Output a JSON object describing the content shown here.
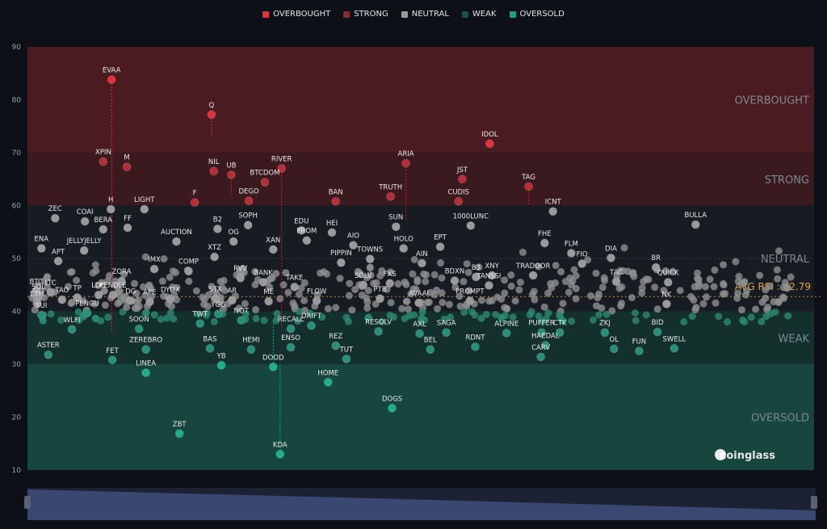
{
  "legend": [
    {
      "label": "OVERBOUGHT",
      "color": "#e0323e"
    },
    {
      "label": "STRONG",
      "color": "#8b2b30"
    },
    {
      "label": "NEUTRAL",
      "color": "#9a9a9a"
    },
    {
      "label": "WEAK",
      "color": "#1f4f47"
    },
    {
      "label": "OVERSOLD",
      "color": "#1f9e85"
    }
  ],
  "brand": "coinglass",
  "avg_label": "AVG RSI : 42.79",
  "chart_data": {
    "type": "scatter",
    "ylim": [
      10,
      90
    ],
    "yticks": [
      10,
      20,
      30,
      40,
      50,
      60,
      70,
      80,
      90
    ],
    "avg_rsi": 42.79,
    "zones": [
      {
        "label": "OVERBOUGHT",
        "from": 80,
        "to": 90,
        "color": "#4a1c22"
      },
      {
        "label": "STRONG",
        "from": 70,
        "to": 80,
        "color": "#3a1a1f"
      },
      {
        "label": "NEUTRAL",
        "from": 40,
        "to": 70,
        "color": "#1a1d23"
      },
      {
        "label": "WEAK",
        "from": 30,
        "to": 40,
        "color": "#142e2b"
      },
      {
        "label": "OVERSOLD",
        "from": 10,
        "to": 30,
        "color": "#14453d"
      }
    ],
    "bands": [
      {
        "from": 70,
        "to": 90,
        "color": "#4a1c22"
      },
      {
        "from": 60,
        "to": 70,
        "color": "#3a1a1f"
      },
      {
        "from": 40,
        "to": 60,
        "color": "#171b22"
      },
      {
        "from": 30,
        "to": 40,
        "color": "#14302c"
      },
      {
        "from": 10,
        "to": 30,
        "color": "#16463e"
      }
    ],
    "zone_labels": [
      {
        "label": "OVERBOUGHT",
        "y": 80
      },
      {
        "label": "STRONG",
        "y": 65
      },
      {
        "label": "NEUTRAL",
        "y": 50
      },
      {
        "label": "WEAK",
        "y": 35
      },
      {
        "label": "OVERSOLD",
        "y": 20
      }
    ],
    "points": [
      {
        "name": "EVAA",
        "x": 0.104,
        "y": 83.8,
        "prev": 36,
        "c": "#e0323e"
      },
      {
        "name": "Q",
        "x": 0.235,
        "y": 77.2,
        "prev": 73,
        "c": "#e0323e"
      },
      {
        "name": "IDOL",
        "x": 0.6,
        "y": 71.7,
        "c": "#e0323e"
      },
      {
        "name": "XPIN",
        "x": 0.093,
        "y": 68.3,
        "c": "#b52e38"
      },
      {
        "name": "M",
        "x": 0.124,
        "y": 67.3,
        "c": "#b52e38"
      },
      {
        "name": "ARIA",
        "x": 0.49,
        "y": 68.0,
        "prev": 57,
        "c": "#b52e38"
      },
      {
        "name": "NIL",
        "x": 0.238,
        "y": 66.5,
        "c": "#b52e38"
      },
      {
        "name": "UB",
        "x": 0.261,
        "y": 65.8,
        "prev": 62,
        "c": "#b52e38"
      },
      {
        "name": "RIVER",
        "x": 0.327,
        "y": 67.0,
        "prev": 37,
        "c": "#b52e38"
      },
      {
        "name": "BTCDOM",
        "x": 0.305,
        "y": 64.4,
        "c": "#b52e38"
      },
      {
        "name": "JST",
        "x": 0.564,
        "y": 65.0,
        "c": "#b52e38"
      },
      {
        "name": "TAG",
        "x": 0.651,
        "y": 63.6,
        "prev": 60,
        "c": "#b52e38"
      },
      {
        "name": "TRUTH",
        "x": 0.47,
        "y": 61.7,
        "c": "#b52e38"
      },
      {
        "name": "CUDIS",
        "x": 0.559,
        "y": 60.8,
        "c": "#b52e38"
      },
      {
        "name": "DEGO",
        "x": 0.284,
        "y": 60.9,
        "c": "#b52e38"
      },
      {
        "name": "BAN",
        "x": 0.398,
        "y": 60.8,
        "c": "#b52e38"
      },
      {
        "name": "F",
        "x": 0.213,
        "y": 60.6,
        "c": "#b52e38"
      },
      {
        "name": "H",
        "x": 0.103,
        "y": 59.3,
        "c": "#9a9a9a"
      },
      {
        "name": "LIGHT",
        "x": 0.147,
        "y": 59.3,
        "c": "#9a9a9a"
      },
      {
        "name": "ZEC",
        "x": 0.03,
        "y": 57.6,
        "c": "#9a9a9a"
      },
      {
        "name": "COAI",
        "x": 0.069,
        "y": 57.0,
        "c": "#9a9a9a"
      },
      {
        "name": "ICNT",
        "x": 0.683,
        "y": 58.9,
        "c": "#9a9a9a"
      },
      {
        "name": "BULLA",
        "x": 0.87,
        "y": 56.4,
        "c": "#9a9a9a"
      },
      {
        "name": "1000LUNC",
        "x": 0.575,
        "y": 56.2,
        "c": "#9a9a9a"
      },
      {
        "name": "SUN",
        "x": 0.477,
        "y": 56.0,
        "c": "#9a9a9a"
      },
      {
        "name": "BERA",
        "x": 0.093,
        "y": 55.5,
        "c": "#9a9a9a"
      },
      {
        "name": "FF",
        "x": 0.125,
        "y": 55.8,
        "c": "#9a9a9a"
      },
      {
        "name": "HEI",
        "x": 0.393,
        "y": 54.9,
        "c": "#9a9a9a"
      },
      {
        "name": "EDU",
        "x": 0.353,
        "y": 55.3,
        "c": "#9a9a9a"
      },
      {
        "name": "SOPH",
        "x": 0.283,
        "y": 56.3,
        "c": "#9a9a9a"
      },
      {
        "name": "B2",
        "x": 0.243,
        "y": 55.6,
        "c": "#9a9a9a"
      },
      {
        "name": "OG",
        "x": 0.264,
        "y": 53.2,
        "c": "#9a9a9a"
      },
      {
        "name": "PROM",
        "x": 0.36,
        "y": 53.4,
        "c": "#9a9a9a"
      },
      {
        "name": "AUCTION",
        "x": 0.189,
        "y": 53.2,
        "c": "#9a9a9a"
      },
      {
        "name": "HOLO",
        "x": 0.487,
        "y": 51.9,
        "c": "#9a9a9a"
      },
      {
        "name": "FHE",
        "x": 0.672,
        "y": 52.9,
        "c": "#9a9a9a"
      },
      {
        "name": "ENA",
        "x": 0.012,
        "y": 51.9,
        "c": "#9a9a9a"
      },
      {
        "name": "APT",
        "x": 0.034,
        "y": 49.5,
        "c": "#9a9a9a"
      },
      {
        "name": "JELLYJELLY",
        "x": 0.068,
        "y": 51.5,
        "c": "#9a9a9a"
      },
      {
        "name": "XAN",
        "x": 0.316,
        "y": 51.7,
        "c": "#9a9a9a"
      },
      {
        "name": "AIO",
        "x": 0.421,
        "y": 52.5,
        "c": "#9a9a9a"
      },
      {
        "name": "EPT",
        "x": 0.535,
        "y": 52.2,
        "c": "#9a9a9a"
      },
      {
        "name": "FLM",
        "x": 0.707,
        "y": 51.0,
        "c": "#9a9a9a"
      },
      {
        "name": "DIA",
        "x": 0.759,
        "y": 50.1,
        "c": "#9a9a9a"
      },
      {
        "name": "XTZ",
        "x": 0.239,
        "y": 50.3,
        "c": "#9a9a9a"
      },
      {
        "name": "TOWNS",
        "x": 0.443,
        "y": 49.9,
        "c": "#9a9a9a"
      },
      {
        "name": "PIPPIN",
        "x": 0.405,
        "y": 49.2,
        "c": "#9a9a9a"
      },
      {
        "name": "AIN",
        "x": 0.511,
        "y": 49.1,
        "c": "#9a9a9a"
      },
      {
        "name": "IMX",
        "x": 0.16,
        "y": 48.0,
        "c": "#9a9a9a"
      },
      {
        "name": "COMP",
        "x": 0.205,
        "y": 47.6,
        "c": "#9a9a9a"
      },
      {
        "name": "RVV",
        "x": 0.273,
        "y": 46.3,
        "c": "#9a9a9a"
      },
      {
        "name": "XNY",
        "x": 0.603,
        "y": 46.8,
        "c": "#9a9a9a"
      },
      {
        "name": "B3",
        "x": 0.582,
        "y": 46.5,
        "c": "#9a9a9a"
      },
      {
        "name": "TRADOOR",
        "x": 0.657,
        "y": 46.8,
        "c": "#9a9a9a"
      },
      {
        "name": "FIO",
        "x": 0.721,
        "y": 49.0,
        "c": "#9a9a9a"
      },
      {
        "name": "BR",
        "x": 0.818,
        "y": 48.3,
        "c": "#9a9a9a"
      },
      {
        "name": "ZORA",
        "x": 0.117,
        "y": 45.7,
        "c": "#9a9a9a"
      },
      {
        "name": "BANK",
        "x": 0.303,
        "y": 45.5,
        "c": "#9a9a9a"
      },
      {
        "name": "TAKE",
        "x": 0.344,
        "y": 44.6,
        "c": "#9a9a9a"
      },
      {
        "name": "BDXN",
        "x": 0.554,
        "y": 45.8,
        "c": "#9a9a9a"
      },
      {
        "name": "SOLV",
        "x": 0.434,
        "y": 45.0,
        "c": "#9a9a9a"
      },
      {
        "name": "FXS",
        "x": 0.469,
        "y": 45.3,
        "c": "#9a9a9a"
      },
      {
        "name": "TANSSI",
        "x": 0.599,
        "y": 44.9,
        "c": "#9a9a9a"
      },
      {
        "name": "TAC",
        "x": 0.766,
        "y": 45.6,
        "c": "#9a9a9a"
      },
      {
        "name": "QUICK",
        "x": 0.834,
        "y": 45.5,
        "c": "#9a9a9a"
      },
      {
        "name": "BTC",
        "x": 0.005,
        "y": 43.8,
        "c": "#9a9a9a"
      },
      {
        "name": "SOL",
        "x": 0.008,
        "y": 42.8,
        "c": "#9a9a9a"
      },
      {
        "name": "ETH",
        "x": 0.006,
        "y": 41.5,
        "c": "#9a9a9a"
      },
      {
        "name": "LTC",
        "x": 0.024,
        "y": 43.6,
        "c": "#9a9a9a"
      },
      {
        "name": "TAO",
        "x": 0.039,
        "y": 42.2,
        "c": "#9a9a9a"
      },
      {
        "name": "TP",
        "x": 0.059,
        "y": 42.6,
        "c": "#9a9a9a"
      },
      {
        "name": "LDO",
        "x": 0.087,
        "y": 43.1,
        "c": "#9a9a9a"
      },
      {
        "name": "PENDLE",
        "x": 0.106,
        "y": 43.1,
        "c": "#9a9a9a"
      },
      {
        "name": "DG",
        "x": 0.129,
        "y": 42.0,
        "c": "#9a9a9a"
      },
      {
        "name": "APE",
        "x": 0.154,
        "y": 41.8,
        "c": "#9a9a9a"
      },
      {
        "name": "DYDX",
        "x": 0.181,
        "y": 42.3,
        "c": "#9a9a9a"
      },
      {
        "name": "STX",
        "x": 0.24,
        "y": 42.4,
        "c": "#9a9a9a"
      },
      {
        "name": "AR",
        "x": 0.262,
        "y": 42.1,
        "c": "#9a9a9a"
      },
      {
        "name": "ME",
        "x": 0.31,
        "y": 41.9,
        "c": "#9a9a9a"
      },
      {
        "name": "FLOW",
        "x": 0.373,
        "y": 42.0,
        "c": "#9a9a9a"
      },
      {
        "name": "PTB",
        "x": 0.456,
        "y": 42.4,
        "c": "#9a9a9a"
      },
      {
        "name": "AVAAI",
        "x": 0.507,
        "y": 41.6,
        "c": "#9a9a9a"
      },
      {
        "name": "PROMPT",
        "x": 0.574,
        "y": 42.0,
        "c": "#9a9a9a"
      },
      {
        "name": "NK",
        "x": 0.832,
        "y": 41.4,
        "c": "#9a9a9a"
      },
      {
        "name": "SUI",
        "x": 0.012,
        "y": 39.3,
        "c": "#2a8f78"
      },
      {
        "name": "WLFI",
        "x": 0.052,
        "y": 36.6,
        "c": "#2a8f78"
      },
      {
        "name": "PENGU",
        "x": 0.072,
        "y": 39.7,
        "c": "#2a8f78"
      },
      {
        "name": "SOON",
        "x": 0.14,
        "y": 36.7,
        "c": "#2a8f78"
      },
      {
        "name": "TWT",
        "x": 0.22,
        "y": 37.7,
        "c": "#2a8f78"
      },
      {
        "name": "YGG",
        "x": 0.244,
        "y": 39.5,
        "c": "#2a8f78"
      },
      {
        "name": "NOT",
        "x": 0.274,
        "y": 38.3,
        "c": "#2a8f78"
      },
      {
        "name": "RECALL",
        "x": 0.339,
        "y": 36.7,
        "c": "#2a8f78"
      },
      {
        "name": "DRIFT",
        "x": 0.366,
        "y": 37.3,
        "c": "#2a8f78"
      },
      {
        "name": "RESOLV",
        "x": 0.454,
        "y": 36.2,
        "c": "#2a8f78"
      },
      {
        "name": "AXL",
        "x": 0.508,
        "y": 35.8,
        "c": "#2a8f78"
      },
      {
        "name": "SAGA",
        "x": 0.543,
        "y": 36.0,
        "c": "#2a8f78"
      },
      {
        "name": "ALPINE",
        "x": 0.622,
        "y": 35.9,
        "c": "#2a8f78"
      },
      {
        "name": "PUFFER",
        "x": 0.668,
        "y": 36.0,
        "c": "#2a8f78"
      },
      {
        "name": "CTK",
        "x": 0.692,
        "y": 36.0,
        "c": "#2a8f78"
      },
      {
        "name": "ZKJ",
        "x": 0.751,
        "y": 36.0,
        "c": "#2a8f78"
      },
      {
        "name": "BID",
        "x": 0.82,
        "y": 36.1,
        "c": "#2a8f78"
      },
      {
        "name": "ASTER",
        "x": 0.021,
        "y": 31.8,
        "c": "#2a8f78"
      },
      {
        "name": "ZEREBRO",
        "x": 0.149,
        "y": 32.8,
        "c": "#2a8f78"
      },
      {
        "name": "BAS",
        "x": 0.233,
        "y": 33.0,
        "c": "#2a8f78"
      },
      {
        "name": "HEMI",
        "x": 0.287,
        "y": 32.8,
        "c": "#2a8f78"
      },
      {
        "name": "ENSO",
        "x": 0.339,
        "y": 33.2,
        "c": "#2a8f78"
      },
      {
        "name": "REZ",
        "x": 0.398,
        "y": 33.5,
        "c": "#2a8f78"
      },
      {
        "name": "TUT",
        "x": 0.412,
        "y": 31.0,
        "c": "#2a8f78"
      },
      {
        "name": "BEL",
        "x": 0.522,
        "y": 32.8,
        "c": "#2a8f78"
      },
      {
        "name": "RDNT",
        "x": 0.581,
        "y": 33.3,
        "c": "#2a8f78"
      },
      {
        "name": "HAEDAL",
        "x": 0.673,
        "y": 33.6,
        "c": "#2a8f78"
      },
      {
        "name": "CARV",
        "x": 0.667,
        "y": 31.4,
        "c": "#2a8f78"
      },
      {
        "name": "OL",
        "x": 0.763,
        "y": 32.9,
        "c": "#2a8f78"
      },
      {
        "name": "FUN",
        "x": 0.796,
        "y": 32.5,
        "c": "#2a8f78"
      },
      {
        "name": "SWELL",
        "x": 0.842,
        "y": 33.0,
        "c": "#2a8f78"
      },
      {
        "name": "FET",
        "x": 0.105,
        "y": 30.8,
        "c": "#2a8f78"
      },
      {
        "name": "YB",
        "x": 0.248,
        "y": 29.8,
        "c": "#1fae8c"
      },
      {
        "name": "LINEA",
        "x": 0.149,
        "y": 28.4,
        "c": "#1fae8c"
      },
      {
        "name": "DOOD",
        "x": 0.316,
        "y": 29.5,
        "prev": 38,
        "c": "#1fae8c"
      },
      {
        "name": "HOME",
        "x": 0.388,
        "y": 26.6,
        "c": "#1fae8c"
      },
      {
        "name": "DOGS",
        "x": 0.472,
        "y": 21.7,
        "c": "#1fae8c"
      },
      {
        "name": "ZBT",
        "x": 0.193,
        "y": 16.9,
        "c": "#1fae8c"
      },
      {
        "name": "KDA",
        "x": 0.325,
        "y": 13.0,
        "prev": 30,
        "c": "#1fae8c"
      }
    ]
  }
}
